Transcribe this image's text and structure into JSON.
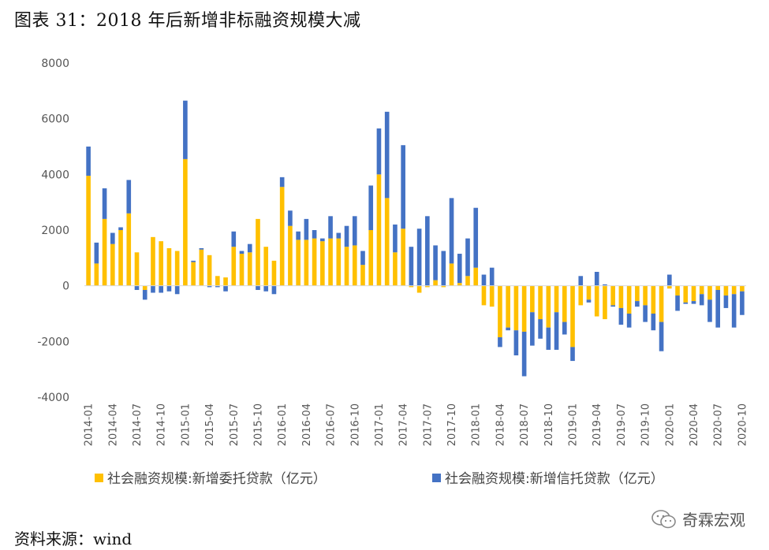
{
  "title": "图表 31：2018 年后新增非标融资规模大减",
  "source": "资料来源：wind",
  "brand": {
    "name": "奇霖宏观",
    "icon": "wechat-icon"
  },
  "chart_data": {
    "type": "bar",
    "stacked": true,
    "ylim": [
      -4000,
      8000
    ],
    "yticks": [
      8000,
      6000,
      4000,
      2000,
      0,
      -2000,
      -4000
    ],
    "xtick_labels": [
      "2014-01",
      "2014-04",
      "2014-07",
      "2014-10",
      "2015-01",
      "2015-04",
      "2015-07",
      "2015-10",
      "2016-01",
      "2016-04",
      "2016-07",
      "2016-10",
      "2017-01",
      "2017-04",
      "2017-07",
      "2017-10",
      "2018-01",
      "2018-04",
      "2018-07",
      "2018-10",
      "2019-01",
      "2019-04",
      "2019-07",
      "2019-10",
      "2020-01",
      "2020-04",
      "2020-07",
      "2020-10"
    ],
    "legend_position": "bottom",
    "colors": {
      "entrust": "#FFC000",
      "trust": "#4472C4"
    },
    "series": [
      {
        "name": "社会融资规模:新增委托贷款（亿元）",
        "key": "entrust",
        "values": [
          3950,
          800,
          2400,
          1500,
          2000,
          2600,
          1200,
          -150,
          1750,
          1600,
          1350,
          1250,
          4550,
          850,
          1300,
          1100,
          350,
          300,
          1400,
          1150,
          1200,
          2400,
          1400,
          900,
          3550,
          2150,
          1650,
          1650,
          1700,
          1600,
          1700,
          1700,
          1400,
          1450,
          750,
          2000,
          4000,
          3150,
          1200,
          2050,
          -50,
          -250,
          -50,
          200,
          -50,
          800,
          100,
          350,
          650,
          -700,
          -750,
          -1850,
          -1500,
          -1600,
          -1650,
          -950,
          -1200,
          -1500,
          -950,
          -1300,
          -2200,
          -700,
          -500,
          -1100,
          -1200,
          -700,
          -800,
          -1000,
          -550,
          -700,
          -1000,
          -1300,
          -100,
          -350,
          -600,
          -550,
          -300,
          -500,
          -150,
          -350,
          -300,
          -200
        ]
      },
      {
        "name": "社会融资规模:新增信托贷款（亿元）",
        "key": "trust",
        "values": [
          1050,
          750,
          1100,
          400,
          100,
          1200,
          -150,
          -350,
          -250,
          -250,
          -200,
          -300,
          2100,
          50,
          50,
          -50,
          -50,
          -200,
          550,
          100,
          300,
          -150,
          -200,
          -300,
          350,
          550,
          300,
          750,
          300,
          100,
          800,
          200,
          750,
          1050,
          500,
          1600,
          1650,
          3100,
          1000,
          3000,
          1400,
          2050,
          2500,
          1250,
          1250,
          2350,
          1050,
          1350,
          2150,
          400,
          650,
          -350,
          -100,
          -900,
          -1600,
          -1200,
          -700,
          -800,
          -1350,
          -450,
          -500,
          350,
          -100,
          500,
          50,
          -50,
          -600,
          -500,
          -200,
          -600,
          -600,
          -1050,
          400,
          -550,
          -50,
          -100,
          -400,
          -800,
          -1350,
          -450,
          -1200,
          -850
        ]
      }
    ]
  }
}
